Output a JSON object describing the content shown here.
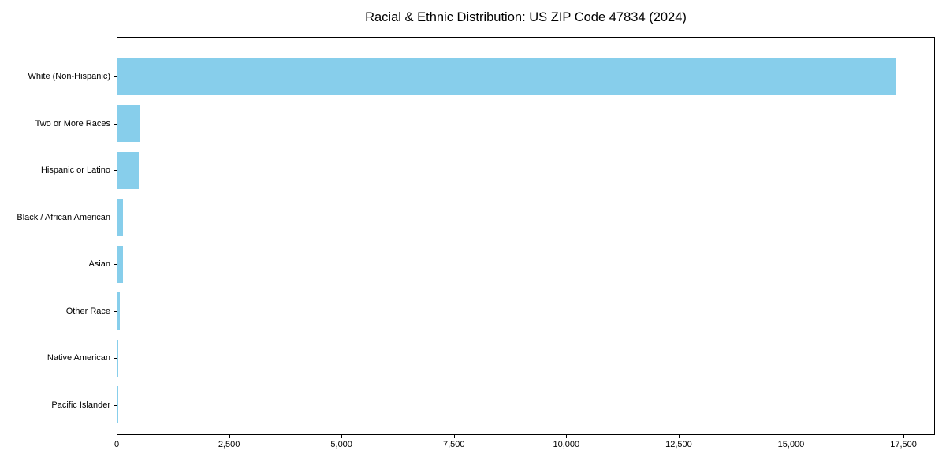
{
  "chart_data": {
    "type": "bar",
    "orientation": "horizontal",
    "title": "Racial & Ethnic Distribution: US ZIP Code 47834 (2024)",
    "categories": [
      "White (Non-Hispanic)",
      "Two or More Races",
      "Hispanic or Latino",
      "Black / African American",
      "Asian",
      "Other Race",
      "Native American",
      "Pacific Islander"
    ],
    "values": [
      17350,
      490,
      475,
      120,
      130,
      50,
      10,
      5
    ],
    "bar_color": "#87CEEB",
    "xlabel": "",
    "ylabel": "",
    "xlim": [
      0,
      18200
    ],
    "x_ticks": [
      0,
      2500,
      5000,
      7500,
      10000,
      12500,
      15000,
      17500
    ],
    "x_tick_labels": [
      "0",
      "2,500",
      "5,000",
      "7,500",
      "10,000",
      "12,500",
      "15,000",
      "17,500"
    ],
    "grid": false,
    "legend": "none",
    "spine_color": "#000000",
    "text_color": "#000000"
  }
}
